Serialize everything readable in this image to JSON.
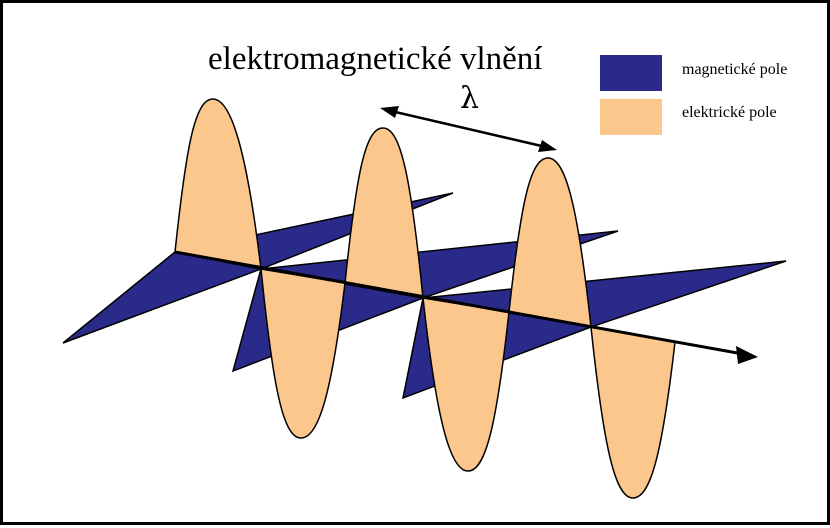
{
  "title": "elektromagnetické vlnění",
  "wavelength_symbol": "λ",
  "legend": [
    {
      "label": "magnetické pole",
      "color": "#2a2a8a"
    },
    {
      "label": "elektrické pole",
      "color": "#fcc78c"
    }
  ],
  "colors": {
    "magnetic": "#2a2a8a",
    "electric": "#fcc78c",
    "outline": "#000000"
  }
}
